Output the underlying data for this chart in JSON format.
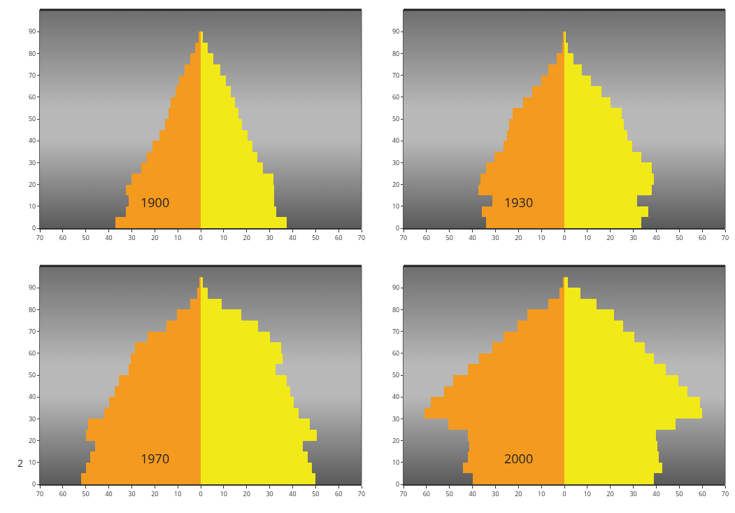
{
  "chart_data": [
    {
      "type": "bar",
      "orientation": "horizontal",
      "stacked": true,
      "annotations": [
        "1900"
      ],
      "x": [
        2.5,
        7.5,
        12.5,
        17.5,
        22.5,
        27.5,
        32.5,
        37.5,
        42.5,
        47.5,
        52.5,
        57.5,
        62.5,
        67.5,
        72.5,
        77.5,
        82.5,
        87.5
      ],
      "series": [
        {
          "color": "#f39a1f",
          "values": [
            -37,
            -32.5,
            -31.5,
            -32.5,
            -30,
            -26,
            -23.5,
            -21,
            -18,
            -15.5,
            -14,
            -13,
            -11,
            -9.5,
            -7,
            -4.5,
            -2.5,
            -1
          ]
        },
        {
          "color": "#f2e919",
          "values": [
            37.5,
            33,
            32,
            32,
            31.5,
            27,
            24.5,
            22.5,
            20.5,
            18,
            16.5,
            15,
            13,
            11,
            8.5,
            5.5,
            3,
            1
          ]
        }
      ],
      "xlim": [
        -70,
        70
      ],
      "xticks": [
        {
          "value": -70,
          "label": "70"
        },
        {
          "value": -60,
          "label": "60"
        },
        {
          "value": -50,
          "label": "50"
        },
        {
          "value": -40,
          "label": "40"
        },
        {
          "value": -30,
          "label": "30"
        },
        {
          "value": -20,
          "label": "20"
        },
        {
          "value": -10,
          "label": "10"
        },
        0,
        10,
        20,
        30,
        40,
        50,
        60,
        70
      ],
      "ylim": [
        0,
        100
      ],
      "yticks": [
        0,
        10,
        20,
        30,
        40,
        50,
        60,
        70,
        80,
        90
      ],
      "grid": false
    },
    {
      "type": "bar",
      "orientation": "horizontal",
      "stacked": true,
      "annotations": [
        "1930"
      ],
      "x": [
        2.5,
        7.5,
        12.5,
        17.5,
        22.5,
        27.5,
        32.5,
        37.5,
        42.5,
        47.5,
        52.5,
        57.5,
        62.5,
        67.5,
        72.5,
        77.5,
        82.5,
        87.5
      ],
      "series": [
        {
          "color": "#f39a1f",
          "values": [
            -34,
            -36,
            -31.5,
            -37.5,
            -36.5,
            -34,
            -30.5,
            -26.5,
            -25,
            -24,
            -22.5,
            -18,
            -14,
            -10,
            -7,
            -3.5,
            -1,
            -0.5
          ]
        },
        {
          "color": "#f2e919",
          "values": [
            33.5,
            36.5,
            31.5,
            38,
            39,
            38,
            33.5,
            29.5,
            27.5,
            26,
            25,
            20,
            16,
            11.5,
            7.5,
            4,
            1.5,
            0.5
          ]
        }
      ],
      "xlim": [
        -70,
        70
      ],
      "xticks": [
        {
          "value": -70,
          "label": "70"
        },
        {
          "value": -60,
          "label": "60"
        },
        {
          "value": -50,
          "label": "50"
        },
        {
          "value": -40,
          "label": "40"
        },
        {
          "value": -30,
          "label": "30"
        },
        {
          "value": -20,
          "label": "20"
        },
        {
          "value": -10,
          "label": "10"
        },
        0,
        10,
        20,
        30,
        40,
        50,
        60,
        70
      ],
      "ylim": [
        0,
        100
      ],
      "yticks": [
        0,
        10,
        20,
        30,
        40,
        50,
        60,
        70,
        80,
        90
      ],
      "grid": false
    },
    {
      "type": "bar",
      "orientation": "horizontal",
      "stacked": true,
      "annotations": [
        "1970",
        "2"
      ],
      "x": [
        2.5,
        7.5,
        12.5,
        17.5,
        22.5,
        27.5,
        32.5,
        37.5,
        42.5,
        47.5,
        52.5,
        57.5,
        62.5,
        67.5,
        72.5,
        77.5,
        82.5,
        87.5,
        92.5
      ],
      "series": [
        {
          "color": "#f39a1f",
          "values": [
            -52,
            -50,
            -48,
            -46,
            -50,
            -49,
            -42,
            -40,
            -37.5,
            -35.5,
            -31.5,
            -30.5,
            -28.5,
            -23,
            -15,
            -10.5,
            -4.5,
            -1.5,
            -0.5
          ]
        },
        {
          "color": "#f2e919",
          "values": [
            50,
            48.5,
            46.5,
            44.5,
            50.5,
            47.5,
            42.5,
            40.5,
            39,
            37.5,
            32.5,
            35.5,
            35,
            30,
            25,
            17.5,
            9,
            3,
            1
          ]
        }
      ],
      "xlim": [
        -70,
        70
      ],
      "xticks": [
        {
          "value": -70,
          "label": "70"
        },
        {
          "value": -60,
          "label": "60"
        },
        {
          "value": -50,
          "label": "50"
        },
        {
          "value": -40,
          "label": "40"
        },
        {
          "value": -30,
          "label": "30"
        },
        {
          "value": -20,
          "label": "20"
        },
        {
          "value": -10,
          "label": "10"
        },
        0,
        10,
        20,
        30,
        40,
        50,
        60,
        70
      ],
      "ylim": [
        0,
        100
      ],
      "yticks": [
        0,
        10,
        20,
        30,
        40,
        50,
        60,
        70,
        80,
        90
      ],
      "grid": false
    },
    {
      "type": "bar",
      "orientation": "horizontal",
      "stacked": true,
      "annotations": [
        "2000"
      ],
      "x": [
        2.5,
        7.5,
        12.5,
        17.5,
        22.5,
        27.5,
        32.5,
        37.5,
        42.5,
        47.5,
        52.5,
        57.5,
        62.5,
        67.5,
        72.5,
        77.5,
        82.5,
        87.5,
        92.5
      ],
      "series": [
        {
          "color": "#f39a1f",
          "values": [
            -40,
            -44,
            -42,
            -41.5,
            -42,
            -50.5,
            -61,
            -58,
            -52.5,
            -48.5,
            -42,
            -37,
            -31.5,
            -26.5,
            -20.5,
            -16,
            -7,
            -2,
            -0.5
          ]
        },
        {
          "color": "#f2e919",
          "values": [
            39,
            42.5,
            41,
            40.5,
            40,
            48.5,
            60,
            59,
            53.5,
            49.5,
            44,
            39,
            35,
            30.5,
            25.5,
            21.5,
            14,
            7,
            1.5
          ]
        }
      ],
      "xlim": [
        -70,
        70
      ],
      "xticks": [
        {
          "value": -70,
          "label": "70"
        },
        {
          "value": -60,
          "label": "60"
        },
        {
          "value": -50,
          "label": "50"
        },
        {
          "value": -40,
          "label": "40"
        },
        {
          "value": -30,
          "label": "30"
        },
        {
          "value": -20,
          "label": "20"
        },
        {
          "value": -10,
          "label": "10"
        },
        0,
        10,
        20,
        30,
        40,
        50,
        60,
        70
      ],
      "ylim": [
        0,
        100
      ],
      "yticks": [
        0,
        10,
        20,
        30,
        40,
        50,
        60,
        70,
        80,
        90
      ],
      "grid": false
    }
  ]
}
